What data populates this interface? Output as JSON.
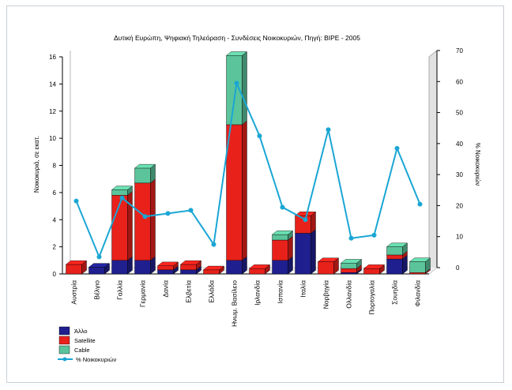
{
  "chart_data": {
    "type": "bar",
    "stacked": true,
    "title": "Δυτική Ευρώπη, Ψηφιακή Τηλεόραση - Συνδέσεις Νοικοκυριών, Πηγή: BIPE - 2005",
    "ylabel": "Νοικοκυριά, σε εκατ.",
    "y2label": "% Νοικοκυριών",
    "ylim": [
      0,
      16
    ],
    "y2lim": [
      0,
      70
    ],
    "yticks": [
      "0",
      "2",
      "4",
      "6",
      "8",
      "10",
      "12",
      "14",
      "16"
    ],
    "y2ticks": [
      "0",
      "10",
      "20",
      "30",
      "40",
      "50",
      "60",
      "70"
    ],
    "categories": [
      "Αυστρία",
      "Βέλγιο",
      "Γαλλία",
      "Γερμανία",
      "Δανία",
      "Ελβετία",
      "Ελλάδα",
      "Ηνωμ. Βασίλειο",
      "Ιρλανδία",
      "Ισπανία",
      "Ιταλία",
      "Νορβηγία",
      "Ολλανδία",
      "Πορτογαλία",
      "Σουηδία",
      "Φιλανδία"
    ],
    "series": [
      {
        "name": "Άλλο",
        "kind": "bar",
        "color": "#1f1f8f",
        "values": [
          0,
          0.5,
          1.0,
          1.0,
          0.3,
          0.3,
          0,
          1.0,
          0,
          1.0,
          3.0,
          0,
          0.1,
          0,
          1.1,
          0
        ]
      },
      {
        "name": "Satellite",
        "kind": "bar",
        "color": "#e8211b",
        "values": [
          0.7,
          0,
          4.8,
          5.7,
          0.3,
          0.4,
          0.3,
          10.0,
          0.4,
          1.5,
          1.3,
          0.9,
          0.3,
          0.4,
          0.3,
          0.1
        ]
      },
      {
        "name": "Cable",
        "kind": "bar",
        "color": "#5cc49b",
        "values": [
          0,
          0,
          0.4,
          1.1,
          0,
          0,
          0,
          5.1,
          0,
          0.4,
          0,
          0,
          0.4,
          0,
          0.6,
          0.8
        ]
      },
      {
        "name": "% Νοικοκυριών",
        "kind": "line",
        "axis": "right",
        "color": "#1aa6d4",
        "values": [
          23,
          5,
          24,
          18,
          19,
          20,
          9,
          61,
          44,
          21,
          17,
          46,
          11,
          12,
          40,
          22
        ]
      }
    ],
    "legend_position": "bottom-left",
    "grid": false
  }
}
